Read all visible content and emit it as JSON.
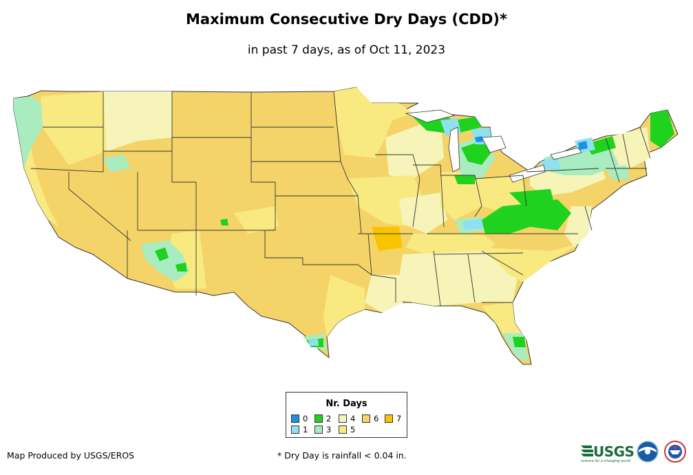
{
  "title": "Maximum Consecutive Dry Days (CDD)*",
  "subtitle": "in past 7 days, as of Oct 11, 2023",
  "legend": {
    "title": "Nr. Days",
    "items": [
      {
        "label": "0",
        "color": "#1e90e6"
      },
      {
        "label": "1",
        "color": "#8fe0f0"
      },
      {
        "label": "2",
        "color": "#1ed21e"
      },
      {
        "label": "3",
        "color": "#a8ecc0"
      },
      {
        "label": "4",
        "color": "#f6f4b8"
      },
      {
        "label": "5",
        "color": "#f8ea80"
      },
      {
        "label": "6",
        "color": "#f4d468"
      },
      {
        "label": "7",
        "color": "#f8c400"
      }
    ]
  },
  "credit": "Map Produced by USGS/EROS",
  "footnote": "* Dry Day is rainfall < 0.04 in.",
  "logos": {
    "usgs": "USGS",
    "usgs_tagline": "science for a changing world",
    "noaa": "NOAA",
    "nws": "NATIONAL WEATHER SERVICE"
  }
}
